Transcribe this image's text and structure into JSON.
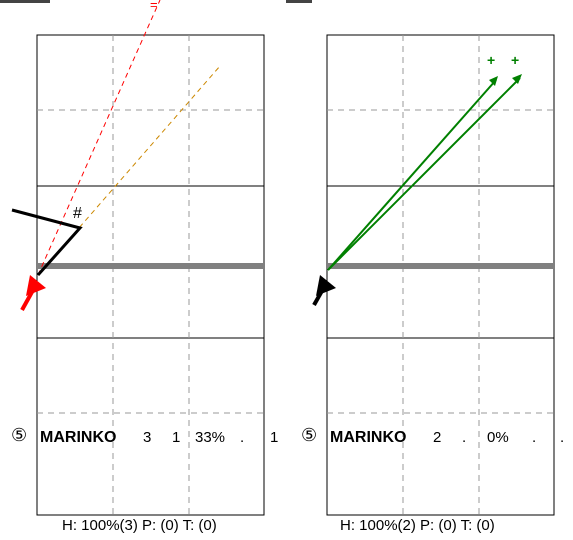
{
  "panels": [
    {
      "player_number": "⑤",
      "player_name": "MARINKO",
      "stats": [
        "3",
        "1",
        "33%",
        ".",
        "1"
      ],
      "summary": "H: 100%(3)  P: (0)  T: (0)",
      "mark_equals": "=",
      "mark_hash": "#"
    },
    {
      "player_number": "⑤",
      "player_name": "MARINKO",
      "stats": [
        "2",
        ".",
        "0%",
        ".",
        "."
      ],
      "summary": "H: 100%(2)  P: (0)  T: (0)",
      "mark_plus_1": "+",
      "mark_plus_2": "+"
    }
  ],
  "colors": {
    "attack_red": "#ff0000",
    "attack_green": "#008000",
    "dashed_orange": "#cc8800",
    "net_gray": "#808080"
  }
}
